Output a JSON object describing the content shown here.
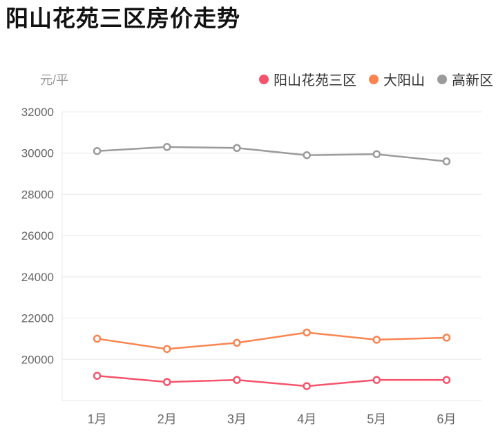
{
  "title": "阳山花苑三区房价走势",
  "y_axis_unit": "元/平",
  "colors": {
    "series_red": "#f4536b",
    "series_orange": "#fa8450",
    "series_gray": "#9b9b9b",
    "gridline": "#e8e8e8",
    "axis_text": "#666666",
    "unit_text": "#999999",
    "legend_text": "#333333",
    "title_text": "#111111",
    "point_fill": "#ffffff"
  },
  "legend": [
    {
      "label": "阳山花苑三区",
      "color": "#f4536b"
    },
    {
      "label": "大阳山",
      "color": "#fa8450"
    },
    {
      "label": "高新区",
      "color": "#9b9b9b"
    }
  ],
  "chart_data": {
    "type": "line",
    "title": "阳山花苑三区房价走势",
    "xlabel": "",
    "ylabel": "元/平",
    "categories": [
      "1月",
      "2月",
      "3月",
      "4月",
      "5月",
      "6月"
    ],
    "series": [
      {
        "name": "阳山花苑三区",
        "color": "#f4536b",
        "values": [
          19200,
          18900,
          19000,
          18700,
          19000,
          19000
        ]
      },
      {
        "name": "大阳山",
        "color": "#fa8450",
        "values": [
          21000,
          20500,
          20800,
          21300,
          20950,
          21050
        ]
      },
      {
        "name": "高新区",
        "color": "#9b9b9b",
        "values": [
          30100,
          30300,
          30250,
          29900,
          29950,
          29600
        ]
      }
    ],
    "ylim": [
      18000,
      32000
    ],
    "y_ticks": [
      32000,
      30000,
      28000,
      26000,
      24000,
      22000,
      20000
    ],
    "grid": true,
    "legend_position": "top-right",
    "marker": "open-circle"
  }
}
